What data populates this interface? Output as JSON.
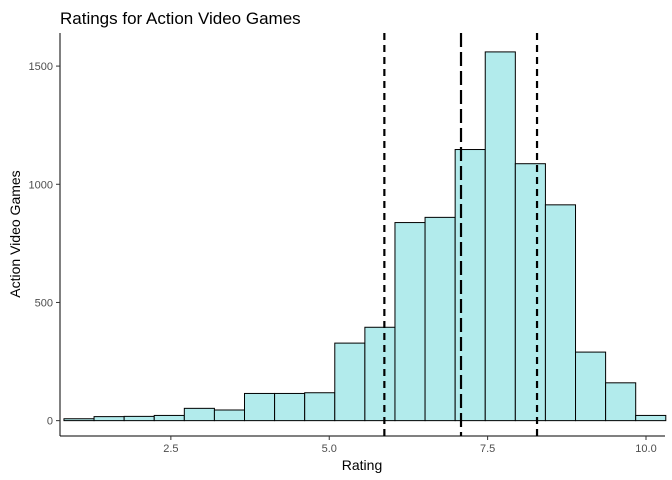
{
  "chart_data": {
    "type": "bar",
    "subtype": "histogram",
    "title": "Ratings for Action Video Games",
    "xlabel": "Rating",
    "ylabel": "Action Video Games",
    "xlim": [
      0.75,
      10.3
    ],
    "ylim": [
      -65,
      1640
    ],
    "x_ticks": [
      2.5,
      5.0,
      7.5,
      10.0
    ],
    "x_tick_labels": [
      "2.5",
      "5.0",
      "7.5",
      "10.0"
    ],
    "y_ticks": [
      0,
      500,
      1000,
      1500
    ],
    "y_tick_labels": [
      "0",
      "500",
      "1000",
      "1500"
    ],
    "bin_width": 0.475,
    "bin_centers": [
      1.05,
      1.525,
      2.0,
      2.475,
      2.95,
      3.425,
      3.9,
      4.375,
      4.85,
      5.325,
      5.8,
      6.275,
      6.75,
      7.225,
      7.7,
      8.175,
      8.65,
      9.125,
      9.6,
      10.075
    ],
    "values": [
      8,
      17,
      18,
      22,
      52,
      45,
      115,
      115,
      118,
      328,
      395,
      838,
      860,
      1147,
      1560,
      1087,
      913,
      290,
      160,
      22
    ],
    "reference_lines": [
      {
        "name": "first-quartile",
        "x": 5.87,
        "style": "dashed"
      },
      {
        "name": "median",
        "x": 7.08,
        "style": "longdash"
      },
      {
        "name": "third-quartile",
        "x": 8.28,
        "style": "dashed"
      }
    ],
    "grid": false,
    "legend": "none",
    "colors": {
      "fill": "#b2ebec",
      "outline": "#000000",
      "tick_text": "#4d4d4d"
    }
  }
}
